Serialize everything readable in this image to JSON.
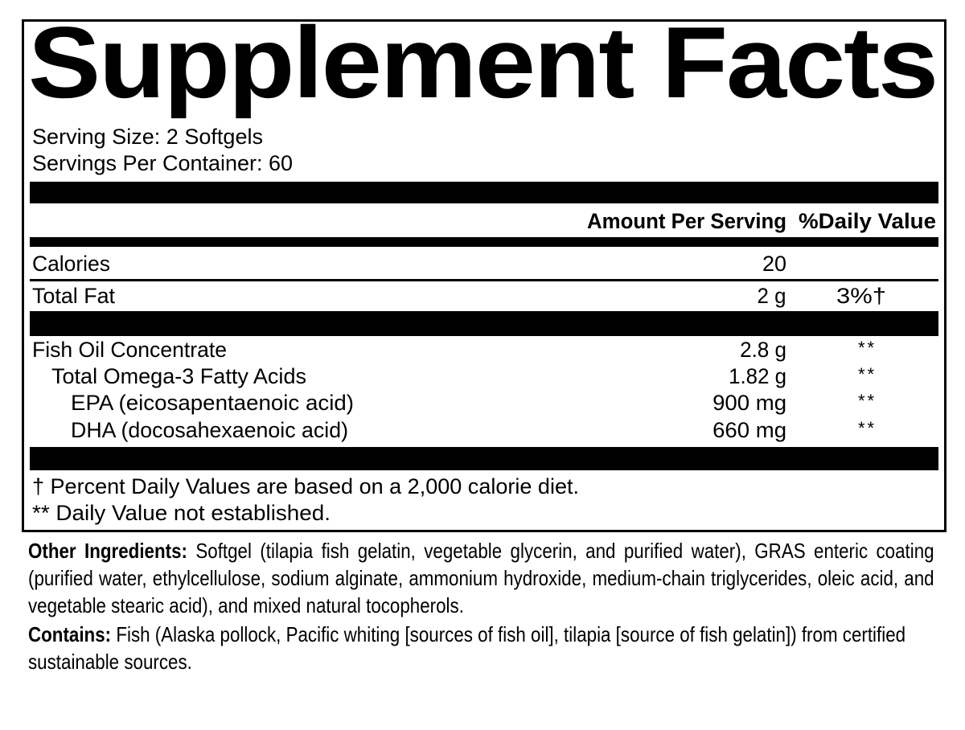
{
  "title": "Supplement Facts",
  "serving_size": "Serving Size: 2 Softgels",
  "servings_per_container": "Servings Per Container: 60",
  "headers": {
    "amount": "Amount Per Serving",
    "dv": "%Daily Value"
  },
  "rows": [
    {
      "name": "Calories",
      "amount": "20",
      "dv": ""
    },
    {
      "name": "Total Fat",
      "amount": "2 g",
      "dv": "3%†"
    },
    {
      "name": "Fish Oil Concentrate",
      "amount": "2.8 g",
      "dv": "**"
    },
    {
      "name": "Total Omega-3 Fatty Acids",
      "amount": "1.82 g",
      "dv": "**"
    },
    {
      "name": "EPA (eicosapentaenoic  acid)",
      "amount": "900 mg",
      "dv": "**"
    },
    {
      "name": "DHA (docosahexaenoic acid)",
      "amount": "660 mg",
      "dv": "**"
    }
  ],
  "footnotes": [
    "† Percent Daily Values are based on a 2,000 calorie diet.",
    "** Daily Value not established."
  ],
  "other_ingredients": {
    "label": "Other Ingredients:",
    "text": " Softgel (tilapia fish gelatin, vegetable glycerin, and purified water), GRAS enteric coating (purified water, ethylcellulose, sodium alginate, ammonium hydroxide, medium-chain triglycerides, oleic acid, and vegetable stearic acid), and mixed natural tocopherols."
  },
  "contains": {
    "label": "Contains:",
    "text": " Fish (Alaska pollock, Pacific whiting [sources of fish oil], tilapia [source of fish gelatin]) from certified sustainable sources."
  }
}
